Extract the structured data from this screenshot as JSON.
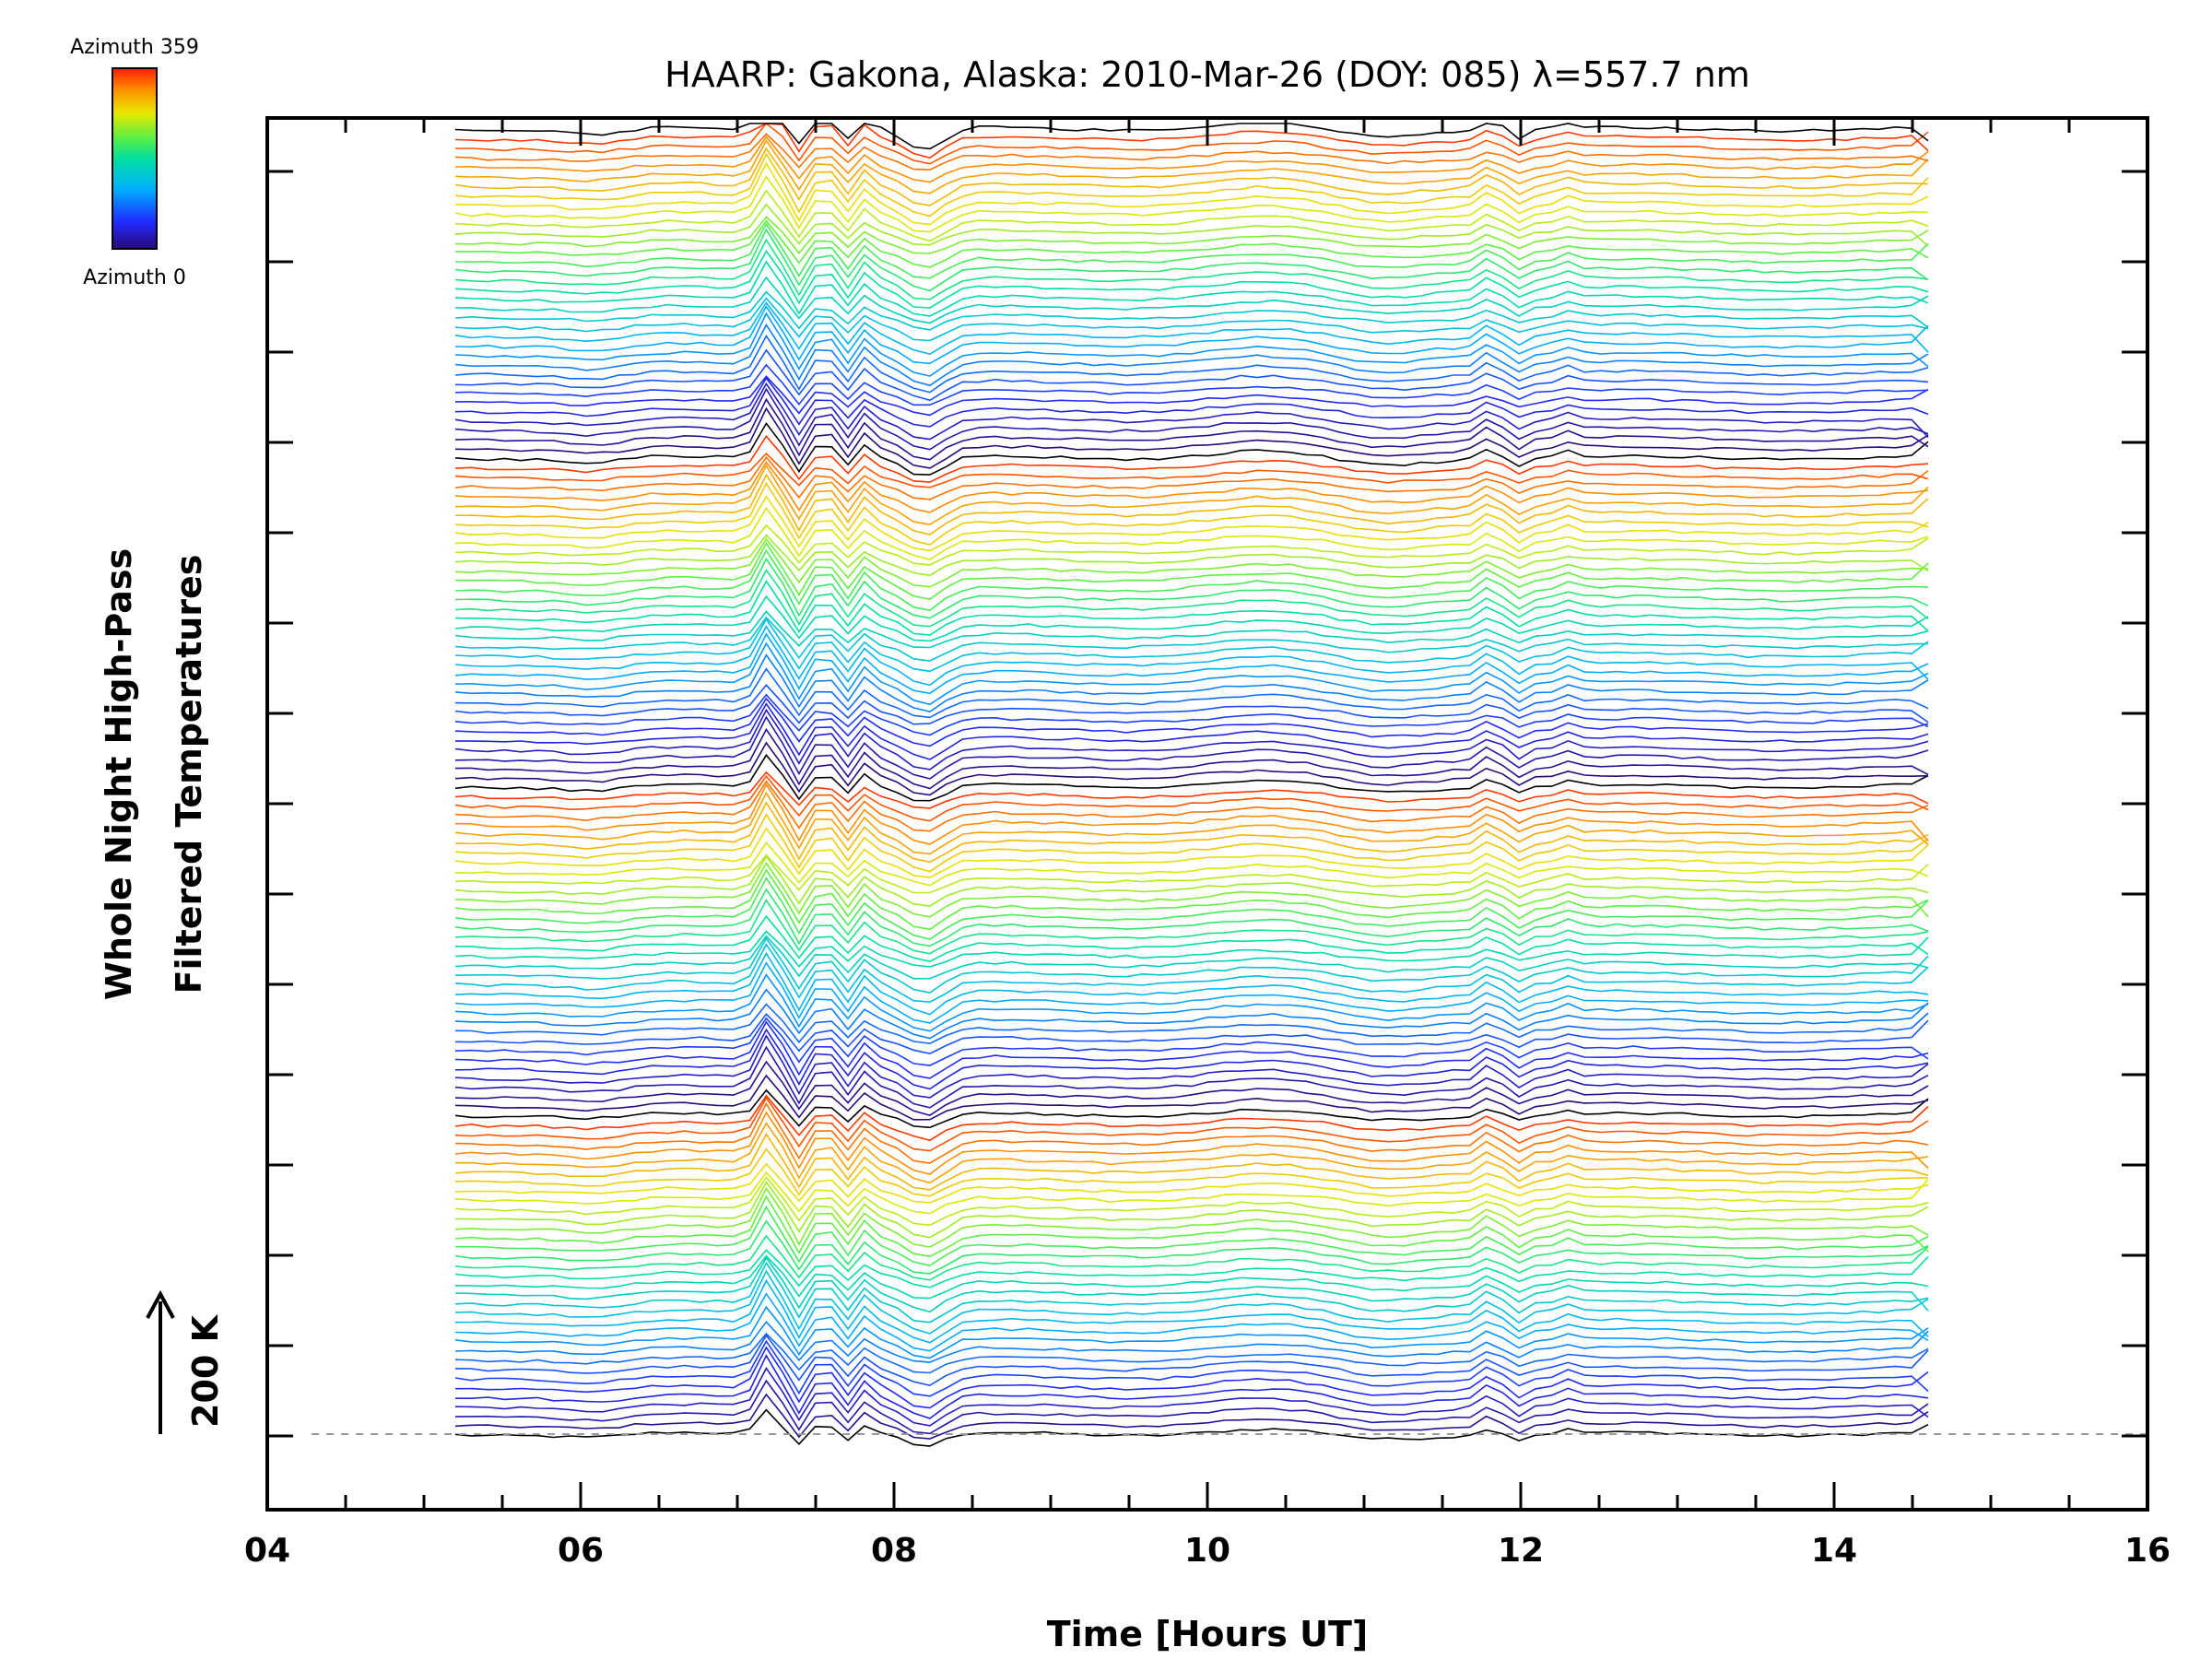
{
  "chart_data": {
    "type": "line",
    "title": "HAARP: Gakona,  Alaska: 2010-Mar-26 (DOY: 085) λ=557.7 nm",
    "xlabel": "Time [Hours UT]",
    "ylabel_line1": "Whole Night High-Pass",
    "ylabel_line2": "Filtered Temperatures",
    "scale_label": "200 K",
    "xlim": [
      4,
      16
    ],
    "x_ticks": [
      "04",
      "06",
      "08",
      "10",
      "12",
      "14",
      "16"
    ],
    "x_start": 5.2,
    "x_end": 14.6,
    "colorbar": {
      "max_label": "Azimuth 359",
      "min_label": "Azimuth 0",
      "min": 0,
      "max": 359
    },
    "series_count": 140,
    "grid": false,
    "baseline_dashed": true,
    "colors": {
      "frame": "#000000",
      "baseline": "#999999",
      "dark_series": "#000000"
    }
  }
}
